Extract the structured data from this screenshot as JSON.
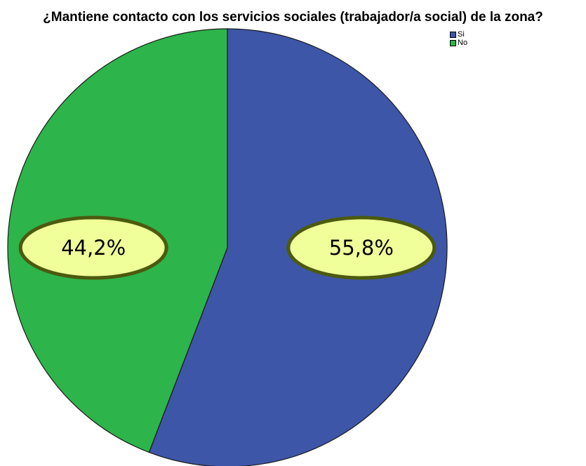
{
  "chart_data": {
    "type": "pie",
    "title": "¿Mantiene contacto con los servicios sociales (trabajador/a social) de la zona?",
    "categories": [
      "Si",
      "No"
    ],
    "values": [
      55.8,
      44.2
    ],
    "value_labels": [
      "55,8%",
      "44,2%"
    ],
    "colors": [
      "#3d56a8",
      "#2db44a"
    ],
    "label_bubble_fill": "#f0ff99",
    "label_bubble_stroke": "#4b5a0e",
    "legend_position": "top-right"
  }
}
